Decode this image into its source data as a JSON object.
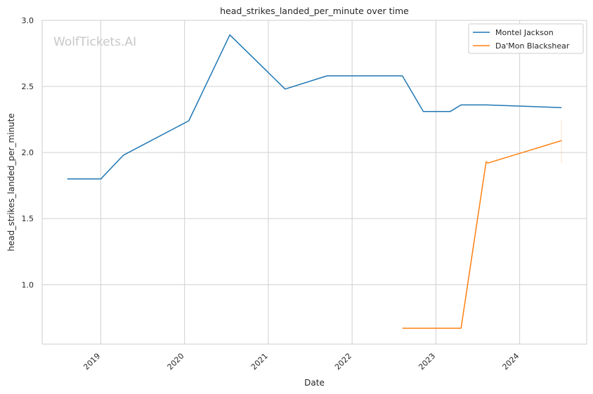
{
  "chart_data": {
    "type": "line",
    "title": "head_strikes_landed_per_minute over time",
    "xlabel": "Date",
    "ylabel": "head_strikes_landed_per_minute",
    "watermark": "WolfTickets.AI",
    "xlim": [
      2018.3,
      2024.8
    ],
    "ylim": [
      0.55,
      3.0
    ],
    "x_ticks": [
      2019,
      2020,
      2021,
      2022,
      2023,
      2024
    ],
    "x_tick_labels": [
      "2019",
      "2020",
      "2021",
      "2022",
      "2023",
      "2024"
    ],
    "y_ticks": [
      1.0,
      1.5,
      2.0,
      2.5,
      3.0
    ],
    "y_tick_labels": [
      "1.0",
      "1.5",
      "2.0",
      "2.5",
      "3.0"
    ],
    "grid": true,
    "legend_position": "top-right",
    "series": [
      {
        "name": "Montel Jackson",
        "color": "#1f77b4",
        "x": [
          2018.6,
          2019.0,
          2019.27,
          2020.05,
          2020.54,
          2021.2,
          2021.7,
          2022.6,
          2022.85,
          2023.17,
          2023.3,
          2023.6,
          2024.5
        ],
        "y": [
          1.8,
          1.8,
          1.98,
          2.24,
          2.89,
          2.48,
          2.58,
          2.58,
          2.31,
          2.31,
          2.36,
          2.36,
          2.34
        ]
      },
      {
        "name": "Da'Mon Blackshear",
        "color": "#ff7f0e",
        "x": [
          2022.6,
          2023.3,
          2023.6,
          2023.62,
          2024.5
        ],
        "y": [
          0.67,
          0.67,
          1.93,
          1.92,
          2.09
        ]
      }
    ]
  }
}
